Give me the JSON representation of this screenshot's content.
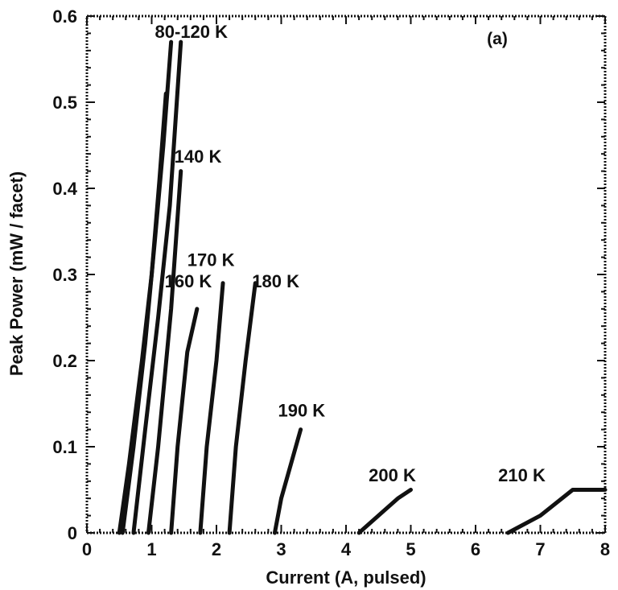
{
  "chart_data": {
    "type": "line",
    "panel_label": "(a)",
    "xlabel": "Current (A, pulsed)",
    "ylabel": "Peak Power (mW / facet)",
    "xlim": [
      0,
      8
    ],
    "ylim": [
      0,
      0.6
    ],
    "xticks": [
      "0",
      "1",
      "2",
      "3",
      "4",
      "5",
      "6",
      "7",
      "8"
    ],
    "yticks": [
      "0",
      "0.1",
      "0.2",
      "0.3",
      "0.4",
      "0.5",
      "0.6"
    ],
    "grid": false,
    "series": [
      {
        "name": "80-120 K",
        "x": [
          0.55,
          0.72,
          0.9,
          1.05,
          1.18,
          1.3
        ],
        "y": [
          0.0,
          0.1,
          0.22,
          0.34,
          0.45,
          0.57
        ]
      },
      {
        "name": "80-120 K",
        "x": [
          0.5,
          0.65,
          0.85,
          1.0,
          1.12,
          1.22
        ],
        "y": [
          0.0,
          0.08,
          0.2,
          0.3,
          0.41,
          0.51
        ]
      },
      {
        "name": "80-120 K",
        "x": [
          0.72,
          0.9,
          1.1,
          1.28,
          1.45
        ],
        "y": [
          0.0,
          0.12,
          0.25,
          0.38,
          0.57
        ]
      },
      {
        "name": "140 K",
        "x": [
          0.95,
          1.1,
          1.3,
          1.45
        ],
        "y": [
          0.0,
          0.1,
          0.26,
          0.42
        ]
      },
      {
        "name": "160 K",
        "x": [
          1.3,
          1.4,
          1.55,
          1.7
        ],
        "y": [
          0.0,
          0.1,
          0.21,
          0.26
        ]
      },
      {
        "name": "170 K",
        "x": [
          1.75,
          1.85,
          2.0,
          2.1
        ],
        "y": [
          0.0,
          0.1,
          0.2,
          0.29
        ]
      },
      {
        "name": "180 K",
        "x": [
          2.2,
          2.3,
          2.45,
          2.6
        ],
        "y": [
          0.0,
          0.1,
          0.2,
          0.29
        ]
      },
      {
        "name": "190 K",
        "x": [
          2.9,
          3.0,
          3.15,
          3.3
        ],
        "y": [
          0.0,
          0.04,
          0.08,
          0.12
        ]
      },
      {
        "name": "200 K",
        "x": [
          4.2,
          4.5,
          4.8,
          5.0
        ],
        "y": [
          0.0,
          0.02,
          0.04,
          0.05
        ]
      },
      {
        "name": "210 K",
        "x": [
          6.5,
          7.0,
          7.5,
          8.0
        ],
        "y": [
          0.0,
          0.02,
          0.05,
          0.05
        ]
      }
    ],
    "annotations": [
      {
        "text": "80-120 K",
        "x": 1.05,
        "y": 0.575
      },
      {
        "text": "140 K",
        "x": 1.35,
        "y": 0.43
      },
      {
        "text": "170 K",
        "x": 1.55,
        "y": 0.31
      },
      {
        "text": "160 K",
        "x": 1.2,
        "y": 0.285
      },
      {
        "text": "180 K",
        "x": 2.55,
        "y": 0.285
      },
      {
        "text": "190 K",
        "x": 2.95,
        "y": 0.135
      },
      {
        "text": "200 K",
        "x": 4.35,
        "y": 0.06
      },
      {
        "text": "210 K",
        "x": 6.35,
        "y": 0.06
      }
    ]
  }
}
